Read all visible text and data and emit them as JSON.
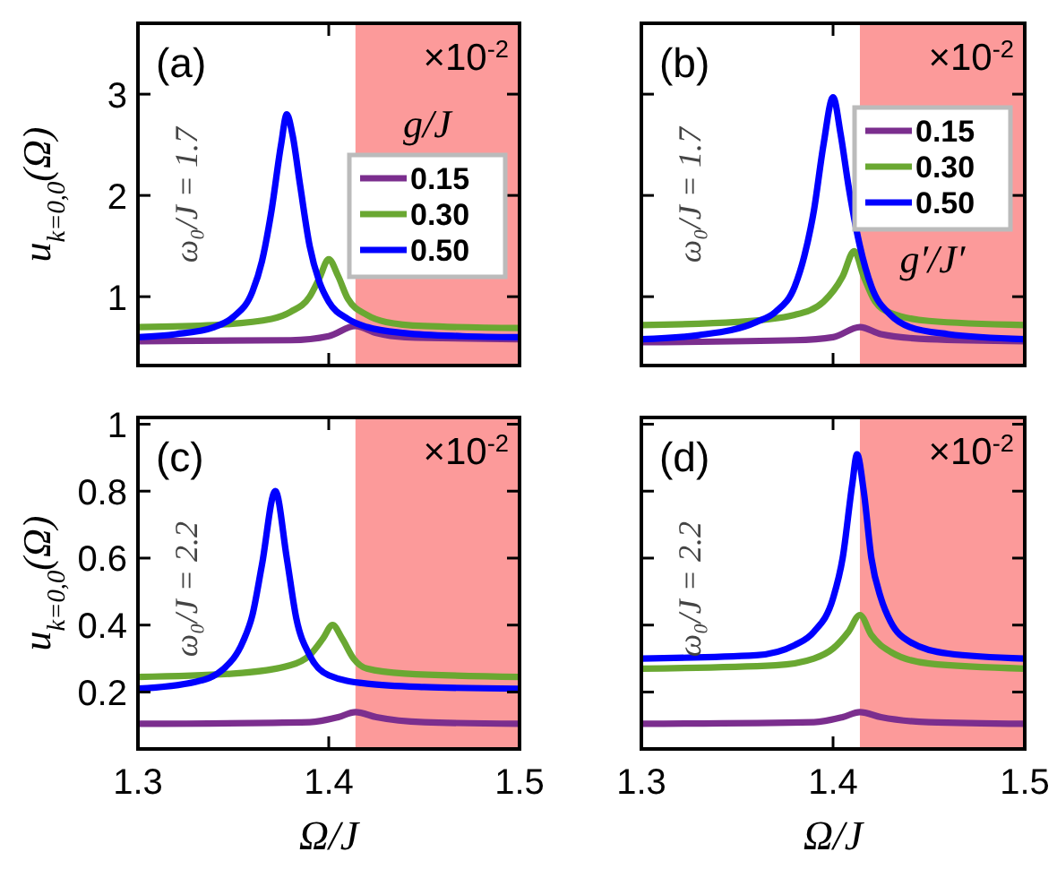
{
  "chart_data": [
    {
      "type": "line",
      "annotations": [
        "(a)",
        "×10$^{-2}$",
        "ω₀/J = 1.7"
      ],
      "ylabel": "u$_{k=0,0}$(Ω)",
      "legend_title": "g/J",
      "legend": "right",
      "xlim": [
        1.3,
        1.5
      ],
      "xticks": [
        1.3,
        1.4,
        1.5
      ],
      "ylim": [
        0.32,
        3.7
      ],
      "yticks": [
        1,
        2,
        3
      ],
      "tick_labels": "y",
      "bands": [
        {
          "axis": "x",
          "from": 1.414,
          "to": 1.5,
          "color": "#fc9a9a"
        }
      ],
      "series": [
        {
          "name": "0.15",
          "color": "#7b2e8e",
          "x": [
            1.3,
            1.38,
            1.4,
            1.414,
            1.425,
            1.44,
            1.5
          ],
          "values": [
            0.56,
            0.57,
            0.61,
            0.71,
            0.64,
            0.6,
            0.58
          ]
        },
        {
          "name": "0.30",
          "color": "#6aa832",
          "x": [
            1.3,
            1.34,
            1.37,
            1.38,
            1.39,
            1.395,
            1.4,
            1.405,
            1.41,
            1.42,
            1.43,
            1.45,
            1.5
          ],
          "values": [
            0.7,
            0.72,
            0.78,
            0.85,
            1.0,
            1.18,
            1.37,
            1.2,
            0.98,
            0.82,
            0.75,
            0.71,
            0.69
          ]
        },
        {
          "name": "0.50",
          "color": "#0000ff",
          "x": [
            1.3,
            1.32,
            1.34,
            1.35,
            1.36,
            1.365,
            1.37,
            1.375,
            1.378,
            1.381,
            1.385,
            1.39,
            1.395,
            1.4,
            1.41,
            1.42,
            1.44,
            1.47,
            1.5
          ],
          "values": [
            0.6,
            0.63,
            0.7,
            0.8,
            1.05,
            1.35,
            1.85,
            2.5,
            2.8,
            2.6,
            2.1,
            1.5,
            1.15,
            0.95,
            0.78,
            0.7,
            0.64,
            0.61,
            0.6
          ]
        }
      ]
    },
    {
      "type": "line",
      "annotations": [
        "(b)",
        "×10$^{-2}$",
        "ω₀/J = 1.7"
      ],
      "legend_title": "g′/J′",
      "legend": "top right",
      "xlim": [
        1.3,
        1.5
      ],
      "xticks": [
        1.3,
        1.4,
        1.5
      ],
      "ylim": [
        0.32,
        3.7
      ],
      "yticks": [
        1,
        2,
        3
      ],
      "tick_labels": false,
      "bands": [
        {
          "axis": "x",
          "from": 1.414,
          "to": 1.5,
          "color": "#fc9a9a"
        }
      ],
      "series": [
        {
          "name": "0.15",
          "color": "#7b2e8e",
          "x": [
            1.3,
            1.38,
            1.4,
            1.414,
            1.425,
            1.45,
            1.5
          ],
          "values": [
            0.55,
            0.57,
            0.6,
            0.7,
            0.63,
            0.58,
            0.56
          ]
        },
        {
          "name": "0.30",
          "color": "#6aa832",
          "x": [
            1.3,
            1.35,
            1.38,
            1.395,
            1.405,
            1.411,
            1.416,
            1.422,
            1.43,
            1.45,
            1.5
          ],
          "values": [
            0.72,
            0.75,
            0.82,
            0.95,
            1.2,
            1.45,
            1.2,
            0.95,
            0.84,
            0.76,
            0.72
          ]
        },
        {
          "name": "0.50",
          "color": "#0000ff",
          "x": [
            1.3,
            1.33,
            1.36,
            1.37,
            1.38,
            1.385,
            1.39,
            1.395,
            1.4,
            1.404,
            1.408,
            1.414,
            1.42,
            1.43,
            1.44,
            1.46,
            1.5
          ],
          "values": [
            0.58,
            0.62,
            0.75,
            0.85,
            1.1,
            1.4,
            1.85,
            2.5,
            2.97,
            2.6,
            2.1,
            1.5,
            1.1,
            0.82,
            0.7,
            0.63,
            0.58
          ]
        }
      ]
    },
    {
      "type": "line",
      "annotations": [
        "(c)",
        "×10$^{-2}$",
        "ω₀/J = 2.2"
      ],
      "ylabel": "u$_{k=0,0}$(Ω)",
      "xlabel": "Ω/J",
      "xlim": [
        1.3,
        1.5
      ],
      "xticks": [
        1.3,
        1.4,
        1.5
      ],
      "ylim": [
        0.03,
        1.02
      ],
      "yticks": [
        0.2,
        0.4,
        0.6,
        0.8,
        1
      ],
      "bands": [
        {
          "axis": "x",
          "from": 1.414,
          "to": 1.5,
          "color": "#fc9a9a"
        }
      ],
      "series": [
        {
          "color": "#7b2e8e",
          "x": [
            1.3,
            1.39,
            1.405,
            1.414,
            1.425,
            1.45,
            1.5
          ],
          "values": [
            0.105,
            0.11,
            0.125,
            0.14,
            0.125,
            0.11,
            0.105
          ]
        },
        {
          "color": "#6aa832",
          "x": [
            1.3,
            1.35,
            1.38,
            1.39,
            1.397,
            1.402,
            1.407,
            1.413,
            1.42,
            1.44,
            1.5
          ],
          "values": [
            0.245,
            0.255,
            0.28,
            0.31,
            0.36,
            0.4,
            0.36,
            0.3,
            0.27,
            0.255,
            0.245
          ]
        },
        {
          "color": "#0000ff",
          "x": [
            1.3,
            1.33,
            1.345,
            1.355,
            1.36,
            1.365,
            1.372,
            1.378,
            1.383,
            1.39,
            1.4,
            1.42,
            1.45,
            1.5
          ],
          "values": [
            0.21,
            0.23,
            0.27,
            0.35,
            0.43,
            0.58,
            0.8,
            0.6,
            0.42,
            0.31,
            0.25,
            0.225,
            0.215,
            0.21
          ]
        }
      ]
    },
    {
      "type": "line",
      "annotations": [
        "(d)",
        "×10$^{-2}$",
        "ω₀/J = 2.2"
      ],
      "xlabel": "Ω/J",
      "xlim": [
        1.3,
        1.5
      ],
      "xticks": [
        1.3,
        1.4,
        1.5
      ],
      "ylim": [
        0.03,
        1.02
      ],
      "yticks": [
        0.2,
        0.4,
        0.6,
        0.8,
        1
      ],
      "tick_labels": "x",
      "bands": [
        {
          "axis": "x",
          "from": 1.414,
          "to": 1.5,
          "color": "#fc9a9a"
        }
      ],
      "series": [
        {
          "color": "#7b2e8e",
          "x": [
            1.3,
            1.39,
            1.405,
            1.414,
            1.425,
            1.45,
            1.5
          ],
          "values": [
            0.105,
            0.11,
            0.125,
            0.14,
            0.125,
            0.11,
            0.105
          ]
        },
        {
          "color": "#6aa832",
          "x": [
            1.3,
            1.37,
            1.39,
            1.4,
            1.408,
            1.414,
            1.42,
            1.43,
            1.45,
            1.5
          ],
          "values": [
            0.27,
            0.28,
            0.3,
            0.33,
            0.38,
            0.43,
            0.37,
            0.32,
            0.285,
            0.27
          ]
        },
        {
          "color": "#0000ff",
          "x": [
            1.3,
            1.36,
            1.38,
            1.39,
            1.4,
            1.405,
            1.41,
            1.4125,
            1.416,
            1.42,
            1.425,
            1.43,
            1.44,
            1.46,
            1.5
          ],
          "values": [
            0.3,
            0.31,
            0.34,
            0.38,
            0.48,
            0.6,
            0.82,
            0.91,
            0.8,
            0.6,
            0.48,
            0.41,
            0.35,
            0.315,
            0.3
          ]
        }
      ]
    }
  ]
}
